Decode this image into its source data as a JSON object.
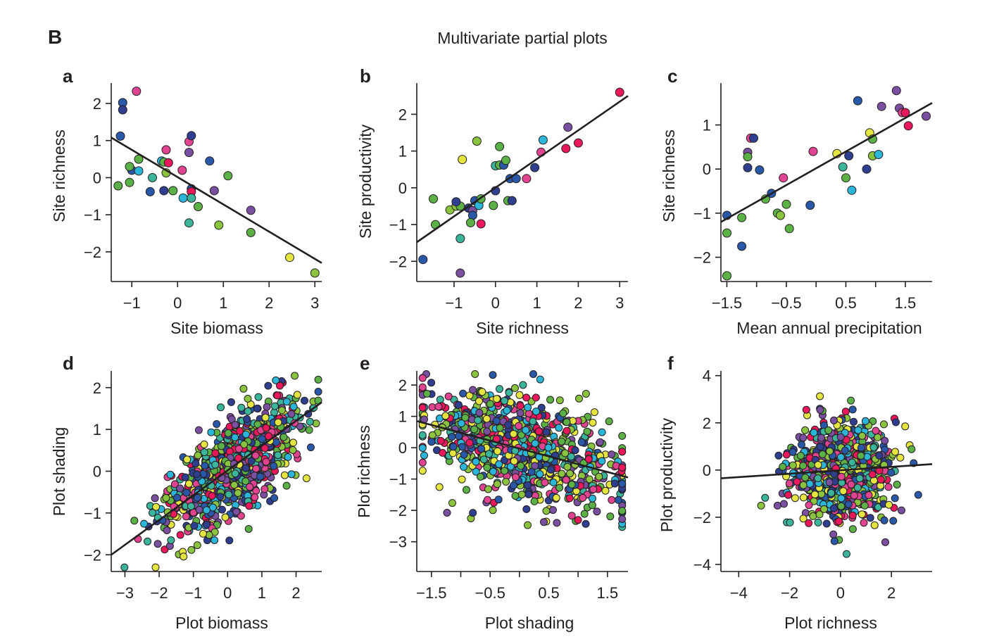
{
  "figure": {
    "label": "B",
    "title": "Multivariate partial plots"
  },
  "palette": [
    "#2a58a8",
    "#2f3f8f",
    "#e8185a",
    "#e0438f",
    "#7b4fa0",
    "#5bb146",
    "#8ac43f",
    "#2bb5d8",
    "#3ab59c",
    "#e5e541"
  ],
  "chart_data": [
    {
      "panel": "a",
      "type": "scatter",
      "xlabel": "Site biomass",
      "ylabel": "Site richness",
      "xlim": [
        -1.45,
        3.15
      ],
      "ylim": [
        -2.8,
        2.55
      ],
      "xticks": [
        -1,
        0,
        1,
        2,
        3
      ],
      "yticks": [
        -2,
        -1,
        0,
        1,
        2
      ],
      "xticklabels": [
        "−1",
        "0",
        "1",
        "2",
        "3"
      ],
      "yticklabels": [
        "−2",
        "−1",
        "0",
        "1",
        "2"
      ],
      "fit": [
        [
          -1.45,
          1.08
        ],
        [
          3.15,
          -2.3
        ]
      ],
      "points": [
        [
          -1.2,
          2.02,
          0
        ],
        [
          -1.2,
          1.83,
          1
        ],
        [
          -0.9,
          2.33,
          3
        ],
        [
          -1.25,
          1.12,
          0
        ],
        [
          -1.0,
          0.2,
          0
        ],
        [
          -1.05,
          0.3,
          5
        ],
        [
          -0.85,
          0.5,
          5
        ],
        [
          -0.85,
          0.18,
          7
        ],
        [
          -1.3,
          -0.22,
          5
        ],
        [
          -1.05,
          -0.13,
          5
        ],
        [
          -0.55,
          0.0,
          8
        ],
        [
          -0.6,
          -0.38,
          0
        ],
        [
          -0.35,
          0.45,
          7
        ],
        [
          -0.3,
          0.42,
          5
        ],
        [
          -0.25,
          0.75,
          3
        ],
        [
          -0.2,
          0.4,
          2
        ],
        [
          -0.25,
          0.13,
          6
        ],
        [
          -0.3,
          -0.35,
          1
        ],
        [
          -0.1,
          -0.35,
          5
        ],
        [
          0.1,
          0.2,
          3
        ],
        [
          0.25,
          0.97,
          3
        ],
        [
          0.3,
          1.13,
          1
        ],
        [
          0.25,
          0.68,
          4
        ],
        [
          0.3,
          -0.3,
          0
        ],
        [
          0.3,
          -0.38,
          2
        ],
        [
          0.12,
          -0.55,
          7
        ],
        [
          0.3,
          -0.55,
          8
        ],
        [
          0.45,
          -0.78,
          5
        ],
        [
          0.25,
          -1.22,
          8
        ],
        [
          0.7,
          0.45,
          0
        ],
        [
          0.8,
          -0.35,
          4
        ],
        [
          1.1,
          0.05,
          5
        ],
        [
          0.9,
          -1.28,
          6
        ],
        [
          1.6,
          -0.88,
          4
        ],
        [
          1.6,
          -1.48,
          5
        ],
        [
          2.45,
          -2.15,
          9
        ],
        [
          3.0,
          -2.57,
          6
        ]
      ]
    },
    {
      "panel": "b",
      "type": "scatter",
      "xlabel": "Site richness",
      "ylabel": "Site productivity",
      "xlim": [
        -1.9,
        3.2
      ],
      "ylim": [
        -2.55,
        2.85
      ],
      "xticks": [
        -1,
        0,
        1,
        2,
        3
      ],
      "yticks": [
        -2,
        -1,
        0,
        1,
        2
      ],
      "xticklabels": [
        "−1",
        "0",
        "1",
        "2",
        "3"
      ],
      "yticklabels": [
        "−2",
        "−1",
        "0",
        "1",
        "2"
      ],
      "fit": [
        [
          -1.9,
          -1.48
        ],
        [
          3.2,
          2.5
        ]
      ],
      "points": [
        [
          -1.75,
          -1.95,
          0
        ],
        [
          -1.5,
          -0.3,
          5
        ],
        [
          -1.45,
          -1.0,
          5
        ],
        [
          -1.1,
          -0.6,
          6
        ],
        [
          -0.95,
          -0.5,
          6
        ],
        [
          -0.85,
          -0.5,
          5
        ],
        [
          -0.95,
          -0.38,
          1
        ],
        [
          -0.85,
          -1.38,
          8
        ],
        [
          -0.85,
          -2.32,
          4
        ],
        [
          -0.8,
          0.77,
          9
        ],
        [
          -0.65,
          -0.55,
          1
        ],
        [
          -0.55,
          -0.62,
          4
        ],
        [
          -0.55,
          -0.75,
          0
        ],
        [
          -0.6,
          -0.95,
          5
        ],
        [
          -0.5,
          -0.35,
          0
        ],
        [
          -0.45,
          1.27,
          6
        ],
        [
          -0.4,
          -0.48,
          7
        ],
        [
          -0.35,
          -0.3,
          5
        ],
        [
          -0.35,
          -0.98,
          2
        ],
        [
          -0.05,
          -0.48,
          5
        ],
        [
          0.0,
          0.6,
          8
        ],
        [
          0.0,
          -0.08,
          1
        ],
        [
          0.1,
          1.12,
          5
        ],
        [
          0.1,
          0.62,
          5
        ],
        [
          0.2,
          0.62,
          0
        ],
        [
          0.25,
          0.75,
          5
        ],
        [
          0.35,
          0.25,
          0
        ],
        [
          0.3,
          -0.35,
          5
        ],
        [
          0.4,
          -0.35,
          1
        ],
        [
          0.5,
          0.25,
          0
        ],
        [
          0.75,
          0.25,
          3
        ],
        [
          0.95,
          0.55,
          1
        ],
        [
          1.1,
          0.97,
          3
        ],
        [
          1.15,
          1.3,
          7
        ],
        [
          1.7,
          1.07,
          2
        ],
        [
          1.75,
          1.65,
          4
        ],
        [
          2.0,
          1.22,
          2
        ],
        [
          3.0,
          2.6,
          2
        ]
      ]
    },
    {
      "panel": "c",
      "type": "scatter",
      "xlabel": "Mean annual precipitation",
      "ylabel": "Site richness",
      "xlim": [
        -1.6,
        1.95
      ],
      "ylim": [
        -2.55,
        1.95
      ],
      "xticks": [
        -1.5,
        -1.0,
        -0.5,
        0.0,
        0.5,
        1.0,
        1.5
      ],
      "yticks": [
        -2,
        -1,
        0,
        1
      ],
      "xticklabels": [
        "−1.5",
        "",
        "−0.5",
        "",
        "0.5",
        "",
        "1.5"
      ],
      "yticklabels": [
        "−2",
        "−1",
        "0",
        "1"
      ],
      "fit": [
        [
          -1.6,
          -1.2
        ],
        [
          1.95,
          1.5
        ]
      ],
      "points": [
        [
          -1.5,
          -2.42,
          5
        ],
        [
          -1.5,
          -1.45,
          5
        ],
        [
          -1.5,
          -1.05,
          0
        ],
        [
          -1.25,
          -1.75,
          0
        ],
        [
          -1.25,
          -1.1,
          5
        ],
        [
          -1.15,
          0.38,
          4
        ],
        [
          -1.15,
          0.28,
          5
        ],
        [
          -1.1,
          0.7,
          3
        ],
        [
          -1.05,
          0.7,
          1
        ],
        [
          -1.15,
          0.03,
          1
        ],
        [
          -0.95,
          -0.02,
          0
        ],
        [
          -0.85,
          -0.68,
          5
        ],
        [
          -0.75,
          -0.55,
          0
        ],
        [
          -0.65,
          -1.0,
          5
        ],
        [
          -0.6,
          -1.05,
          6
        ],
        [
          -0.55,
          -0.2,
          3
        ],
        [
          -0.5,
          -0.8,
          5
        ],
        [
          -0.45,
          -1.35,
          5
        ],
        [
          -0.1,
          -0.82,
          0
        ],
        [
          -0.05,
          0.4,
          3
        ],
        [
          0.35,
          0.35,
          9
        ],
        [
          0.45,
          0.05,
          8
        ],
        [
          0.5,
          -0.2,
          5
        ],
        [
          0.55,
          0.3,
          1
        ],
        [
          0.6,
          -0.48,
          7
        ],
        [
          0.7,
          1.55,
          0
        ],
        [
          0.85,
          0.0,
          1
        ],
        [
          0.9,
          0.82,
          9
        ],
        [
          0.95,
          0.68,
          5
        ],
        [
          0.95,
          0.3,
          6
        ],
        [
          1.05,
          0.33,
          7
        ],
        [
          1.1,
          1.42,
          4
        ],
        [
          1.35,
          1.78,
          4
        ],
        [
          1.4,
          1.38,
          4
        ],
        [
          1.45,
          1.28,
          3
        ],
        [
          1.55,
          0.98,
          2
        ],
        [
          1.85,
          1.2,
          4
        ],
        [
          1.5,
          1.28,
          2
        ]
      ]
    },
    {
      "panel": "d",
      "type": "scatter",
      "xlabel": "Plot biomass",
      "ylabel": "Plot shading",
      "xlim": [
        -3.4,
        2.75
      ],
      "ylim": [
        -2.4,
        2.4
      ],
      "xticks": [
        -3,
        -2,
        -1,
        0,
        1,
        2
      ],
      "yticks": [
        -2,
        -1,
        0,
        1,
        2
      ],
      "xticklabels": [
        "−3",
        "−2",
        "−1",
        "0",
        "1",
        "2"
      ],
      "yticklabels": [
        "−2",
        "−1",
        "0",
        "1",
        "2"
      ],
      "fit": [
        [
          -3.4,
          -2.0
        ],
        [
          2.75,
          1.65
        ]
      ],
      "points_generated": {
        "seed": 11,
        "count": 900,
        "x_mean": 0.1,
        "x_sd": 0.95,
        "slope": 0.55,
        "noise_sd": 0.55
      }
    },
    {
      "panel": "e",
      "type": "scatter",
      "xlabel": "Plot shading",
      "ylabel": "Plot richness",
      "xlim": [
        -1.75,
        1.85
      ],
      "ylim": [
        -3.95,
        2.45
      ],
      "xticks": [
        -1.5,
        -1.0,
        -0.5,
        0.0,
        0.5,
        1.0,
        1.5
      ],
      "yticks": [
        -3,
        -2,
        -1,
        0,
        1,
        2
      ],
      "xticklabels": [
        "−1.5",
        "",
        "−0.5",
        "",
        "0.5",
        "",
        "1.5"
      ],
      "yticklabels": [
        "−3",
        "−2",
        "−1",
        "0",
        "1",
        "2"
      ],
      "fit": [
        [
          -1.75,
          0.85
        ],
        [
          1.85,
          -0.95
        ]
      ],
      "points_generated": {
        "seed": 29,
        "count": 900,
        "x_mean": 0.0,
        "x_sd": 0.85,
        "slope": -0.5,
        "noise_sd": 0.8
      }
    },
    {
      "panel": "f",
      "type": "scatter",
      "xlabel": "Plot richness",
      "ylabel": "Plot productivity",
      "xlim": [
        -4.7,
        3.6
      ],
      "ylim": [
        -4.3,
        4.2
      ],
      "xticks": [
        -4,
        -2,
        0,
        2
      ],
      "yticks": [
        -4,
        -2,
        0,
        2,
        4
      ],
      "xticklabels": [
        "−4",
        "−2",
        "0",
        "2"
      ],
      "yticklabels": [
        "−4",
        "−2",
        "0",
        "2",
        "4"
      ],
      "fit": [
        [
          -4.7,
          -0.35
        ],
        [
          3.6,
          0.25
        ]
      ],
      "points_generated": {
        "seed": 47,
        "count": 900,
        "x_mean": 0.0,
        "x_sd": 1.0,
        "slope": 0.07,
        "noise_sd": 1.0
      }
    }
  ]
}
